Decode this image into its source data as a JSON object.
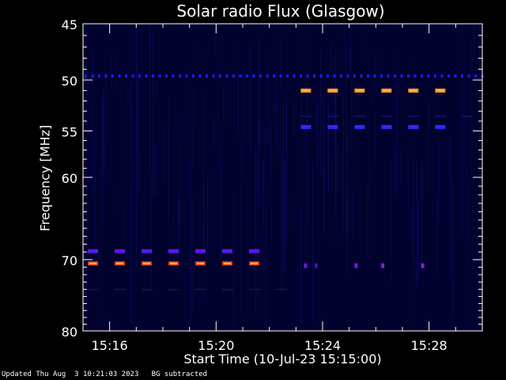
{
  "chart_data": {
    "type": "heatmap",
    "title": "Solar radio Flux (Glasgow)",
    "xlabel": "Start Time (10-Jul-23 15:15:00)",
    "ylabel": "Frequency [MHz]",
    "x_ticks": [
      "15:16",
      "15:20",
      "15:24",
      "15:28"
    ],
    "x_tick_minutes": [
      16,
      20,
      24,
      28
    ],
    "xlim_minutes": [
      15.0,
      30.0
    ],
    "y_ticks": [
      45,
      50,
      55,
      60,
      70,
      80
    ],
    "ylim": [
      45,
      80
    ],
    "y_scale": "log",
    "grid": false,
    "background_color": "#000000",
    "plot_color": "#02022e",
    "features": [
      {
        "kind": "dotted-line",
        "freq": 49.6,
        "t_start": 15.0,
        "t_end": 30.0,
        "color": "#1a1aff"
      },
      {
        "kind": "dashed-band",
        "freq": 68.9,
        "t_start": 15.0,
        "t_end": 22.2,
        "color": "#5a18e8"
      },
      {
        "kind": "dashed-band",
        "freq": 70.5,
        "t_start": 15.0,
        "t_end": 22.2,
        "color": "#ff3a1a",
        "core": "#ffd060"
      },
      {
        "kind": "dashed-band",
        "freq": 51.0,
        "t_start": 23.0,
        "t_end": 29.5,
        "color": "#ff9a1a",
        "core": "#ffb84a"
      },
      {
        "kind": "dashed-band",
        "freq": 54.6,
        "t_start": 23.0,
        "t_end": 29.5,
        "color": "#2a2aff"
      },
      {
        "kind": "faint-line",
        "freq": 74.0,
        "t_start": 15.0,
        "t_end": 22.5,
        "color": "#14146a"
      },
      {
        "kind": "faint-line",
        "freq": 53.5,
        "t_start": 23.0,
        "t_end": 29.5,
        "color": "#14146a"
      }
    ]
  },
  "footer": {
    "updated": "Updated Thu Aug  3 10:21:03 2023   BG subtracted"
  }
}
